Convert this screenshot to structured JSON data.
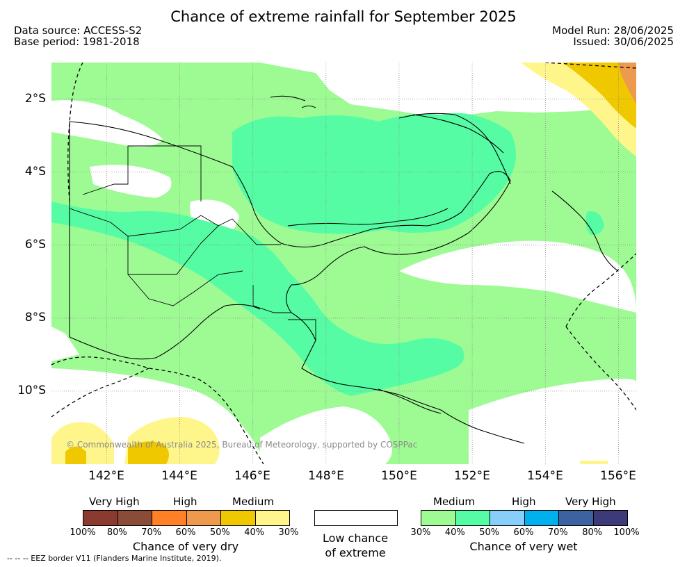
{
  "title": "Chance of extreme rainfall for September 2025",
  "meta": {
    "data_source": "Data source: ACCESS-S2",
    "base_period": "Base period: 1981-2018",
    "model_run": "Model Run: 28/06/2025",
    "issued": "Issued: 30/06/2025"
  },
  "map": {
    "lat_labels": [
      "2°S",
      "4°S",
      "6°S",
      "8°S",
      "10°S"
    ],
    "lon_labels": [
      "142°E",
      "144°E",
      "146°E",
      "148°E",
      "150°E",
      "152°E",
      "154°E",
      "156°E"
    ],
    "lon_range": [
      140.5,
      156.5
    ],
    "lat_range": [
      -11.8,
      -0.8
    ],
    "copyright": "© Commonwealth of Australia 2025, Bureau of Meteorology, supported by COSPPac",
    "colors": {
      "medium_wet": "#9efb94",
      "high_wet_30_40": "#9efb94",
      "wet_40_50": "#55fca3",
      "dry_30_40": "#fef68b",
      "dry_40_50": "#f0c800",
      "dry_50_60": "#ed9a4e",
      "coast": "#000000"
    }
  },
  "legend": {
    "dry": {
      "headers": [
        "Very High",
        "High",
        "Medium"
      ],
      "colors": [
        "#8b3a2f",
        "#8b4c37",
        "#ff8026",
        "#ed9a4e",
        "#f0c800",
        "#fef68b"
      ],
      "ticks": [
        "100%",
        "80%",
        "70%",
        "60%",
        "50%",
        "40%",
        "30%"
      ],
      "title": "Chance of very dry"
    },
    "low": {
      "title_line1": "Low chance",
      "title_line2": "of extreme",
      "color": "#ffffff"
    },
    "wet": {
      "headers": [
        "Medium",
        "High",
        "Very High"
      ],
      "colors": [
        "#9efb94",
        "#55fca3",
        "#87cefa",
        "#00b0ed",
        "#3c62a0",
        "#3d3a79"
      ],
      "ticks": [
        "30%",
        "40%",
        "50%",
        "60%",
        "70%",
        "80%",
        "100%"
      ],
      "title": "Chance of very wet"
    }
  },
  "footer": {
    "eez": "--  --  -- EEZ border V11 (Flanders Marine Institute, 2019)."
  }
}
